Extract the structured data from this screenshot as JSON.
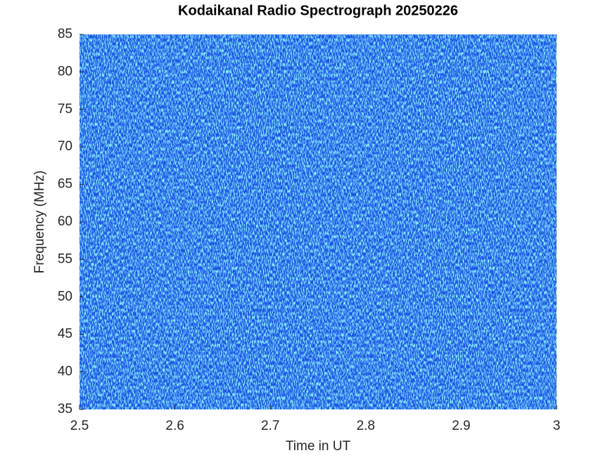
{
  "chart_data": {
    "type": "spectrogram",
    "title": "Kodaikanal Radio Spectrograph  20250226",
    "xlabel": "Time in UT",
    "ylabel": "Frequency (MHz)",
    "xlim": [
      2.5,
      3
    ],
    "xticks": [
      2.5,
      2.6,
      2.7,
      2.8,
      2.9,
      3
    ],
    "ylim": [
      35,
      85
    ],
    "yticks": [
      35,
      40,
      45,
      50,
      55,
      60,
      65,
      70,
      75,
      80,
      85
    ]
  }
}
